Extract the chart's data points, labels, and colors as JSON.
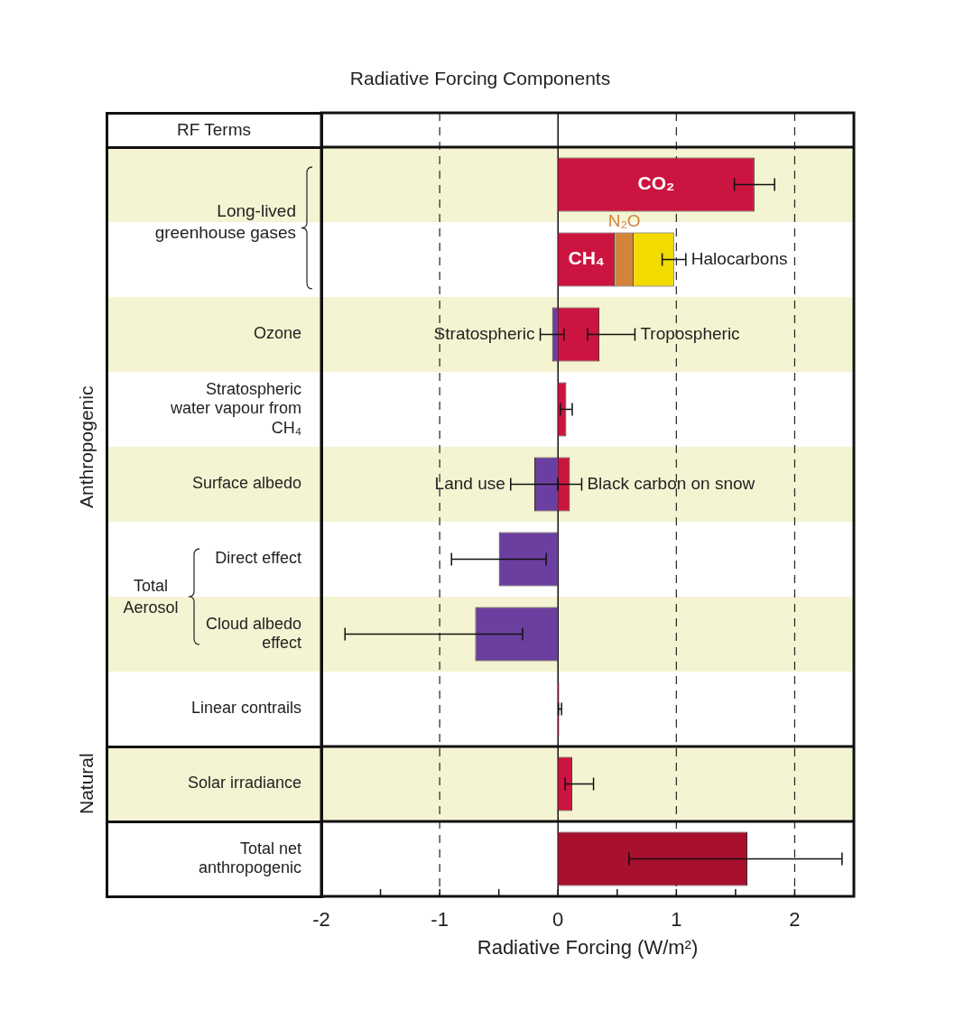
{
  "chart_data": {
    "type": "bar",
    "orientation": "horizontal",
    "title": "Radiative Forcing Components",
    "xlabel": "Radiative Forcing (W/m²)",
    "categories": [
      null,
      null,
      "Ozone",
      "Stratospheric water vapour from CH₄",
      "Surface albedo",
      "Direct effect",
      "Cloud albedo effect",
      "Linear contrails",
      "Solar irradiance",
      "Total net anthropogenic"
    ],
    "series": [
      {
        "name": "CO₂",
        "color": "#cc1440",
        "values": [
          1.66,
          null,
          null,
          null,
          null,
          null,
          null,
          null,
          null,
          null
        ],
        "errors": [
          [
            1.49,
            1.83
          ],
          null,
          null,
          null,
          null,
          null,
          null,
          null,
          null,
          null
        ]
      },
      {
        "name": "CH₄",
        "color": "#cc1440",
        "values": [
          null,
          0.48,
          null,
          null,
          null,
          null,
          null,
          null,
          null,
          null
        ]
      },
      {
        "name": "N₂O",
        "color": "#d2843a",
        "values": [
          null,
          0.16,
          null,
          null,
          null,
          null,
          null,
          null,
          null,
          null
        ],
        "base": [
          null,
          0.48,
          null,
          null,
          null,
          null,
          null,
          null,
          null,
          null
        ]
      },
      {
        "name": "Halocarbons",
        "color": "#f2dc00",
        "values": [
          null,
          0.34,
          null,
          null,
          null,
          null,
          null,
          null,
          null,
          null
        ],
        "base": [
          null,
          0.64,
          null,
          null,
          null,
          null,
          null,
          null,
          null,
          null
        ],
        "errors": [
          null,
          [
            0.88,
            1.08
          ],
          null,
          null,
          null,
          null,
          null,
          null,
          null,
          null
        ]
      },
      {
        "name": "Stratospheric",
        "color": "#6b3fa0",
        "values": [
          null,
          null,
          -0.05,
          null,
          null,
          null,
          null,
          null,
          null,
          null
        ],
        "errors": [
          null,
          null,
          [
            -0.15,
            0.05
          ],
          null,
          null,
          null,
          null,
          null,
          null,
          null
        ]
      },
      {
        "name": "Tropospheric",
        "color": "#cc1440",
        "values": [
          null,
          null,
          0.35,
          null,
          null,
          null,
          null,
          null,
          null,
          null
        ],
        "errors": [
          null,
          null,
          [
            0.25,
            0.65
          ],
          null,
          null,
          null,
          null,
          null,
          null,
          null
        ]
      },
      {
        "color": "#cc1440",
        "values": [
          null,
          null,
          null,
          0.07,
          null,
          null,
          null,
          0.01,
          0.12,
          null
        ],
        "errors": [
          null,
          null,
          null,
          [
            0.02,
            0.12
          ],
          null,
          null,
          null,
          [
            0.003,
            0.03
          ],
          [
            0.06,
            0.3
          ],
          null
        ]
      },
      {
        "name": "Land use",
        "color": "#6b3fa0",
        "values": [
          null,
          null,
          null,
          null,
          -0.2,
          null,
          null,
          null,
          null,
          null
        ],
        "errors": [
          null,
          null,
          null,
          null,
          [
            -0.4,
            0.0
          ],
          null,
          null,
          null,
          null,
          null
        ]
      },
      {
        "name": "Black carbon on snow",
        "color": "#cc1440",
        "values": [
          null,
          null,
          null,
          null,
          0.1,
          null,
          null,
          null,
          null,
          null
        ],
        "errors": [
          null,
          null,
          null,
          null,
          [
            0.0,
            0.2
          ],
          null,
          null,
          null,
          null,
          null
        ]
      },
      {
        "color": "#6b3fa0",
        "values": [
          null,
          null,
          null,
          null,
          null,
          -0.5,
          -0.7,
          null,
          null,
          null
        ],
        "errors": [
          null,
          null,
          null,
          null,
          null,
          [
            -0.9,
            -0.1
          ],
          [
            -1.8,
            -0.3
          ],
          null,
          null,
          null
        ]
      },
      {
        "color": "#a8102e",
        "values": [
          null,
          null,
          null,
          null,
          null,
          null,
          null,
          null,
          null,
          1.6
        ],
        "errors": [
          null,
          null,
          null,
          null,
          null,
          null,
          null,
          null,
          null,
          [
            0.6,
            2.4
          ]
        ]
      }
    ],
    "xlim": [
      -2,
      2.5
    ],
    "xticks": [
      -2,
      {
        "value": -1.5,
        "label": null
      },
      -1,
      {
        "value": -0.5,
        "label": null
      },
      0,
      {
        "value": 0.5,
        "label": null
      },
      1,
      {
        "value": 1.5,
        "label": null
      },
      2
    ],
    "grid": "x",
    "annotations": [
      "RF Terms",
      "Long-lived greenhouse gases",
      "Total Aerosol",
      "Anthropogenic",
      "Natural"
    ]
  }
}
